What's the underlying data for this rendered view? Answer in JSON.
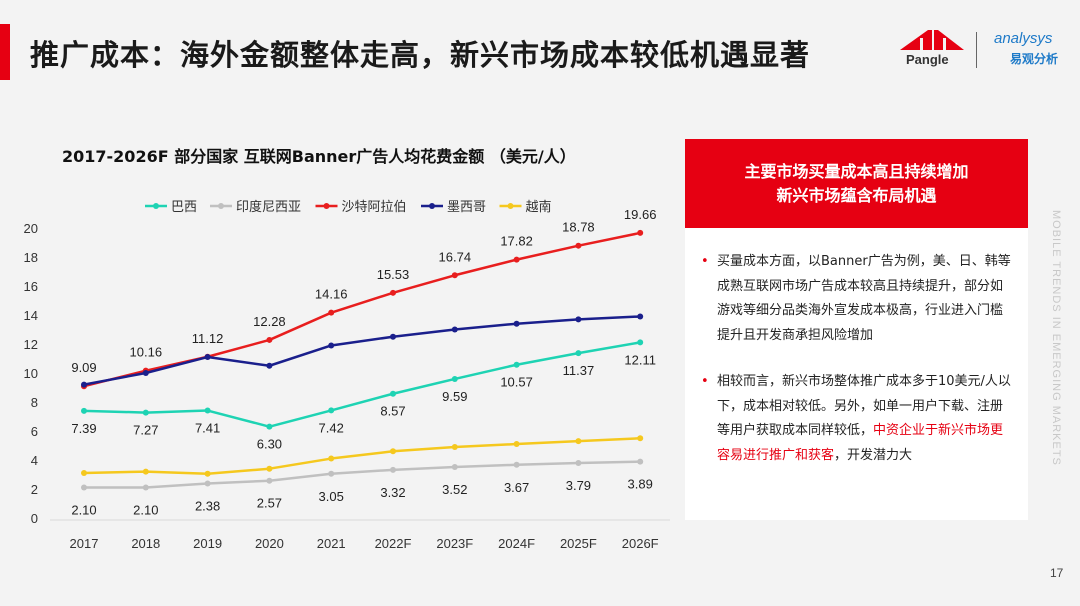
{
  "header": {
    "title": "推广成本：海外金额整体走高，新兴市场成本较低机遇显著",
    "logo_pangle": "Pangle",
    "logo_analysys": "analysys",
    "logo_analysys_cn": "易观分析",
    "accent_color": "#e60012"
  },
  "chart_data": {
    "type": "line",
    "title": "2017-2026F 部分国家 互联网Banner广告人均花费金额 （美元/人）",
    "categories": [
      "2017",
      "2018",
      "2019",
      "2020",
      "2021",
      "2022F",
      "2023F",
      "2024F",
      "2025F",
      "2026F"
    ],
    "ylim": [
      0,
      20
    ],
    "yticks": [
      0,
      2,
      4,
      6,
      8,
      10,
      12,
      14,
      16,
      18,
      20
    ],
    "grid": false,
    "legend": "top",
    "series": [
      {
        "name": "巴西",
        "color": "#1ed3b3",
        "values": [
          7.39,
          7.27,
          7.41,
          6.3,
          7.42,
          8.57,
          9.59,
          10.57,
          11.37,
          12.11
        ],
        "labeled": true,
        "labels": [
          "7.39",
          "7.27",
          "7.41",
          "6.30",
          "7.42",
          "8.57",
          "9.59",
          "10.57",
          "11.37",
          "12.11"
        ]
      },
      {
        "name": "印度尼西亚",
        "color": "#c0c0c0",
        "values": [
          2.1,
          2.1,
          2.38,
          2.57,
          3.05,
          3.32,
          3.52,
          3.67,
          3.79,
          3.89
        ],
        "labeled": true,
        "labels": [
          "2.10",
          "2.10",
          "2.38",
          "2.57",
          "3.05",
          "3.32",
          "3.52",
          "3.67",
          "3.79",
          "3.89"
        ]
      },
      {
        "name": "沙特阿拉伯",
        "color": "#e81e1e",
        "values": [
          9.09,
          10.16,
          11.12,
          12.28,
          14.16,
          15.53,
          16.74,
          17.82,
          18.78,
          19.66
        ],
        "labeled": true,
        "labels": [
          "9.09",
          "10.16",
          "11.12",
          "12.28",
          "14.16",
          "15.53",
          "16.74",
          "17.82",
          "18.78",
          "19.66"
        ]
      },
      {
        "name": "墨西哥",
        "color": "#1a1f8c",
        "values": [
          9.2,
          10.0,
          11.1,
          10.5,
          11.9,
          12.5,
          13.0,
          13.4,
          13.7,
          13.9
        ],
        "labeled": false
      },
      {
        "name": "越南",
        "color": "#f5c81e",
        "values": [
          3.1,
          3.2,
          3.05,
          3.4,
          4.1,
          4.6,
          4.9,
          5.1,
          5.3,
          5.5
        ],
        "labeled": false
      }
    ]
  },
  "panel": {
    "heading_line1": "主要市场买量成本高且持续增加",
    "heading_line2": "新兴市场蕴含布局机遇",
    "bullet1": "买量成本方面，以Banner广告为例，美、日、韩等成熟互联网市场广告成本较高且持续提升，部分如游戏等细分品类海外宣发成本极高，行业进入门槛提升且开发商承担风险增加",
    "bullet2_a": "相较而言，新兴市场整体推广成本多于10美元/人以下，成本相对较低。另外，如单一用户下载、注册等用户获取成本同样较低，",
    "bullet2_highlight": "中资企业于新兴市场更容易进行推广和获客",
    "bullet2_b": "，开发潜力大",
    "bullet_mark": "•"
  },
  "side_text": "MOBILE TRENDS IN EMERGING MARKETS",
  "page_number": "17"
}
